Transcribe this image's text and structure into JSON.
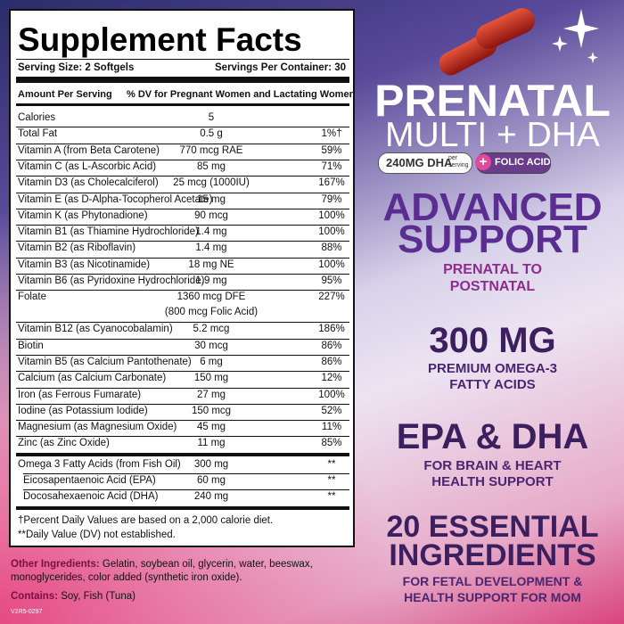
{
  "panel": {
    "title": "Supplement Facts",
    "serving_size": "Serving Size: 2 Softgels",
    "servings_per_container": "Servings Per Container: 30",
    "amount_header": "Amount Per Serving",
    "dv_header": "% DV for Pregnant Women and Lactating Women",
    "rows": [
      {
        "name": "Calories",
        "amount": "5"
      },
      {
        "name": "Total Fat",
        "amount": "0.5 g",
        "dv": "1%†"
      },
      {
        "name": "Vitamin A (from Beta Carotene)",
        "amount": "770 mcg RAE",
        "dv": "59%"
      },
      {
        "name": "Vitamin C (as L-Ascorbic Acid)",
        "amount": "85 mg",
        "dv": "71%"
      },
      {
        "name": "Vitamin D3 (as Cholecalciferol)",
        "amount": "25 mcg (1000IU)",
        "dv": "167%"
      },
      {
        "name": "Vitamin E (as D-Alpha-Tocopherol Acetate)",
        "amount": "15 mg",
        "dv": "79%"
      },
      {
        "name": "Vitamin K (as Phytonadione)",
        "amount": "90 mcg",
        "dv": "100%"
      },
      {
        "name": "Vitamin B1 (as Thiamine Hydrochloride)",
        "amount": "1.4 mg",
        "dv": "100%"
      },
      {
        "name": "Vitamin B2 (as Riboflavin)",
        "amount": "1.4 mg",
        "dv": "88%"
      },
      {
        "name": "Vitamin B3 (as Nicotinamide)",
        "amount": "18 mg NE",
        "dv": "100%"
      },
      {
        "name": "Vitamin B6 (as Pyridoxine Hydrochloride)",
        "amount": "1.9 mg",
        "dv": "95%"
      },
      {
        "name": "Folate",
        "amount": "1360 mcg DFE",
        "amount_note": "(800 mcg Folic Acid)",
        "dv": "227%"
      },
      {
        "name": "Vitamin B12 (as Cyanocobalamin)",
        "amount": "5.2 mcg",
        "dv": "186%"
      },
      {
        "name": "Biotin",
        "amount": "30 mcg",
        "dv": "86%"
      },
      {
        "name": "Vitamin B5 (as Calcium Pantothenate)",
        "amount": "6 mg",
        "dv": "86%"
      },
      {
        "name": "Calcium (as Calcium Carbonate)",
        "amount": "150 mg",
        "dv": "12%"
      },
      {
        "name": "Iron (as Ferrous Fumarate)",
        "amount": "27 mg",
        "dv": "100%"
      },
      {
        "name": "Iodine (as Potassium Iodide)",
        "amount": "150 mcg",
        "dv": "52%"
      },
      {
        "name": "Magnesium (as Magnesium Oxide)",
        "amount": "45 mg",
        "dv": "11%"
      },
      {
        "name": "Zinc (as Zinc Oxide)",
        "amount": "11 mg",
        "dv": "85%"
      }
    ],
    "omega_rows": [
      {
        "name": "Omega 3 Fatty Acids (from Fish Oil)",
        "amount": "300 mg",
        "dv": "**"
      },
      {
        "name": "Eicosapentaenoic Acid (EPA)",
        "amount": "60 mg",
        "dv": "**"
      },
      {
        "name": "Docosahexaenoic Acid (DHA)",
        "amount": "240 mg",
        "dv": "**"
      }
    ],
    "footnotes": [
      "†Percent Daily Values are based on a 2,000 calorie diet.",
      "**Daily Value (DV) not established."
    ]
  },
  "other_ingredients": {
    "label": "Other Ingredients:",
    "text": "Gelatin, soybean oil, glycerin, water, beeswax, monoglycerides, color added (synthetic iron oxide)."
  },
  "contains": {
    "label": "Contains:",
    "text": "Soy, Fish (Tuna)"
  },
  "code": "V2R5-0297",
  "marketing": {
    "title_line1": "PRENATAL",
    "title_line2": "MULTI + DHA",
    "badge_dha": "240MG DHA",
    "badge_per": "per serving",
    "badge_folic": "FOLIC ACID",
    "sections": [
      {
        "heading": [
          "ADVANCED",
          "SUPPORT"
        ],
        "sub": [
          "PRENATAL TO",
          "POSTNATAL"
        ]
      },
      {
        "heading": [
          "300 MG"
        ],
        "sub": [
          "PREMIUM OMEGA-3",
          "FATTY ACIDS"
        ]
      },
      {
        "heading": [
          "EPA & DHA"
        ],
        "sub": [
          "FOR BRAIN & HEART",
          "HEALTH SUPPORT"
        ]
      },
      {
        "heading": [
          "20 ESSENTIAL",
          "INGREDIENTS"
        ],
        "sub": [
          "FOR FETAL DEVELOPMENT &",
          "HEALTH SUPPORT FOR MOM"
        ]
      }
    ]
  }
}
